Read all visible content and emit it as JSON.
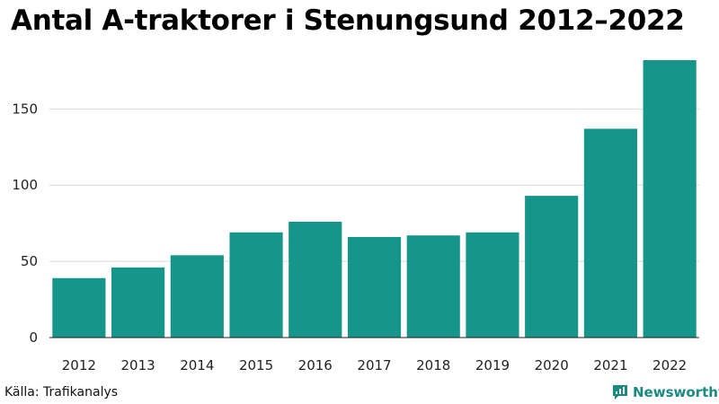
{
  "title": "Antal A-traktorer i Stenungsund 2012–2022",
  "source": "Källa: Trafikanalys",
  "brand": {
    "name": "Newsworthy",
    "icon": "newsworthy-logo-icon",
    "color": "#1a8a80"
  },
  "colors": {
    "bar": "#16968a",
    "grid": "#d9d9d9",
    "axis": "#222222"
  },
  "chart_data": {
    "type": "bar",
    "title": "Antal A-traktorer i Stenungsund 2012–2022",
    "xlabel": "",
    "ylabel": "",
    "categories": [
      "2012",
      "2013",
      "2014",
      "2015",
      "2016",
      "2017",
      "2018",
      "2019",
      "2020",
      "2021",
      "2022"
    ],
    "values": [
      39,
      46,
      54,
      69,
      76,
      66,
      67,
      69,
      93,
      137,
      182
    ],
    "ylim": [
      0,
      182
    ],
    "yticks": [
      0,
      50,
      100,
      150
    ],
    "grid": true
  }
}
